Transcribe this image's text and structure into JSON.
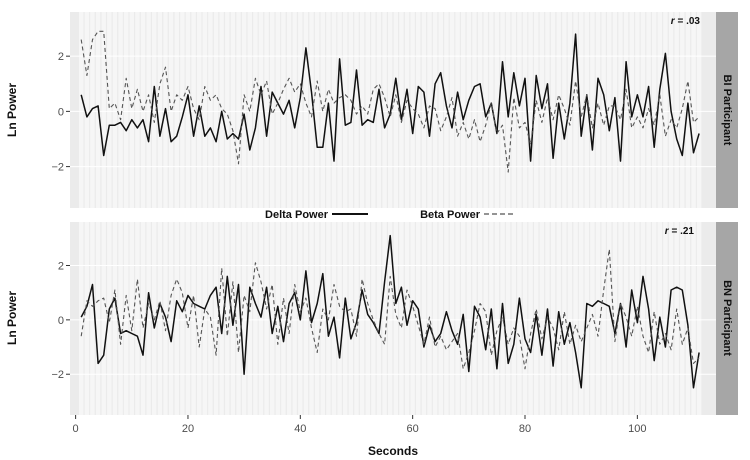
{
  "chart_data": {
    "type": "line",
    "xlabel": "Seconds",
    "ylabel": "Ln Power",
    "xlim": [
      -1,
      114
    ],
    "xticks": [
      0,
      20,
      40,
      60,
      80,
      100
    ],
    "legend": {
      "placement": "between panels",
      "entries": [
        {
          "label": "Delta Power",
          "style": "solid"
        },
        {
          "label": "Beta Power",
          "style": "dashed"
        }
      ]
    },
    "colors": {
      "delta": "#111111",
      "beta": "#555555",
      "panel_bg": "#ebebeb",
      "stripe": "#f6f6f6",
      "strip_bg": "#a6a6a6"
    },
    "panels": [
      {
        "strip_label": "BI Participant",
        "r_prefix": "r",
        "r_value": " = .03",
        "ylim": [
          -3.5,
          3.6
        ],
        "yticks": [
          -2,
          0,
          2
        ],
        "tick_labels": [
          "−2",
          "0",
          "2"
        ],
        "series": [
          {
            "name": "Delta Power",
            "style": "solid",
            "x": [
              1,
              2,
              3,
              4,
              5,
              6,
              7,
              8,
              9,
              10,
              11,
              12,
              13,
              14,
              15,
              16,
              17,
              18,
              19,
              20,
              21,
              22,
              23,
              24,
              25,
              26,
              27,
              28,
              29,
              30,
              31,
              32,
              33,
              34,
              35,
              36,
              37,
              38,
              39,
              40,
              41,
              42,
              43,
              44,
              45,
              46,
              47,
              48,
              49,
              50,
              51,
              52,
              53,
              54,
              55,
              56,
              57,
              58,
              59,
              60,
              61,
              62,
              63,
              64,
              65,
              66,
              67,
              68,
              69,
              70,
              71,
              72,
              73,
              74,
              75,
              76,
              77,
              78,
              79,
              80,
              81,
              82,
              83,
              84,
              85,
              86,
              87,
              88,
              89,
              90,
              91,
              92,
              93,
              94,
              95,
              96,
              97,
              98,
              99,
              100,
              101,
              102,
              103,
              104,
              105,
              106,
              107,
              108,
              109,
              110,
              111
            ],
            "y": [
              0.6,
              -0.2,
              0.1,
              0.2,
              -1.6,
              -0.5,
              -0.5,
              -0.4,
              -0.7,
              -0.3,
              -0.6,
              -0.3,
              -1.1,
              0.9,
              -0.9,
              0.1,
              -1.1,
              -0.9,
              -0.2,
              0.6,
              -0.9,
              0.2,
              -0.9,
              -0.6,
              -1.1,
              0.0,
              -1.0,
              -0.8,
              -1.0,
              -0.1,
              -1.4,
              -0.6,
              0.9,
              -0.9,
              0.7,
              0.3,
              -0.1,
              0.4,
              -0.6,
              0.5,
              2.3,
              0.7,
              -1.3,
              -1.3,
              0.3,
              -1.8,
              1.9,
              -0.5,
              -0.4,
              1.5,
              -0.5,
              -0.3,
              -0.4,
              0.8,
              -0.6,
              -0.1,
              1.2,
              -0.3,
              0.8,
              -0.8,
              0.9,
              0.7,
              -0.9,
              1.0,
              1.4,
              0.2,
              -0.6,
              0.7,
              -0.3,
              0.4,
              0.9,
              1.0,
              -0.2,
              0.3,
              -0.8,
              1.8,
              -0.2,
              1.4,
              0.2,
              1.2,
              -1.8,
              1.3,
              0.1,
              1.0,
              -1.7,
              0.3,
              -1.0,
              0.3,
              2.8,
              -0.9,
              0.6,
              -1.4,
              1.2,
              0.6,
              -0.7,
              0.5,
              -1.8,
              1.8,
              -0.2,
              0.6,
              -0.2,
              0.9,
              -1.3,
              0.8,
              2.1,
              0.0,
              -1.0,
              -1.6,
              0.3,
              -1.5,
              -0.8
            ]
          },
          {
            "name": "Beta Power",
            "style": "dashed",
            "x": [
              1,
              2,
              3,
              4,
              5,
              6,
              7,
              8,
              9,
              10,
              11,
              12,
              13,
              14,
              15,
              16,
              17,
              18,
              19,
              20,
              21,
              22,
              23,
              24,
              25,
              26,
              27,
              28,
              29,
              30,
              31,
              32,
              33,
              34,
              35,
              36,
              37,
              38,
              39,
              40,
              41,
              42,
              43,
              44,
              45,
              46,
              47,
              48,
              49,
              50,
              51,
              52,
              53,
              54,
              55,
              56,
              57,
              58,
              59,
              60,
              61,
              62,
              63,
              64,
              65,
              66,
              67,
              68,
              69,
              70,
              71,
              72,
              73,
              74,
              75,
              76,
              77,
              78,
              79,
              80,
              81,
              82,
              83,
              84,
              85,
              86,
              87,
              88,
              89,
              90,
              91,
              92,
              93,
              94,
              95,
              96,
              97,
              98,
              99,
              100,
              101,
              102,
              103,
              104,
              105,
              106,
              107,
              108,
              109,
              110,
              111
            ],
            "y": [
              2.6,
              1.3,
              2.6,
              2.9,
              2.9,
              0.1,
              0.3,
              -0.3,
              1.2,
              0.1,
              0.8,
              0.0,
              0.6,
              -0.4,
              1.0,
              1.6,
              0.0,
              0.6,
              0.4,
              0.9,
              0.1,
              -0.3,
              0.9,
              0.4,
              0.6,
              0.1,
              -0.1,
              -0.7,
              -1.9,
              0.6,
              0.0,
              1.2,
              0.6,
              1.1,
              -0.1,
              0.3,
              0.8,
              1.2,
              0.7,
              1.0,
              0.3,
              -0.2,
              1.1,
              0.0,
              0.8,
              0.3,
              0.5,
              0.6,
              0.4,
              -0.1,
              0.2,
              -0.1,
              0.8,
              1.0,
              0.5,
              -0.2,
              0.6,
              -0.4,
              0.4,
              0.1,
              -0.1,
              -0.6,
              0.2,
              0.1,
              -0.7,
              -0.2,
              0.5,
              -0.9,
              -0.4,
              -1.0,
              -0.3,
              -1.1,
              -0.5,
              0.3,
              -0.8,
              -0.5,
              -2.2,
              0.5,
              -0.6,
              -0.4,
              -1.2,
              0.4,
              -0.4,
              0.5,
              -0.3,
              0.6,
              0.1,
              -0.5,
              1.1,
              -0.2,
              0.6,
              -0.6,
              0.3,
              -0.5,
              0.2,
              0.2,
              -0.3,
              0.8,
              -0.6,
              -0.2,
              -0.6,
              0.1,
              -0.5,
              0.6,
              -0.9,
              -0.3,
              -0.6,
              0.1,
              1.1,
              -0.4,
              -0.2
            ]
          }
        ]
      },
      {
        "strip_label": "BN Participant",
        "r_prefix": "r",
        "r_value": " = .21",
        "ylim": [
          -3.5,
          3.6
        ],
        "yticks": [
          -2,
          0,
          2
        ],
        "tick_labels": [
          "−2",
          "0",
          "2"
        ],
        "series": [
          {
            "name": "Delta Power",
            "style": "solid",
            "x": [
              1,
              2,
              3,
              4,
              5,
              6,
              7,
              8,
              9,
              10,
              11,
              12,
              13,
              14,
              15,
              16,
              17,
              18,
              19,
              20,
              21,
              22,
              23,
              24,
              25,
              26,
              27,
              28,
              29,
              30,
              31,
              32,
              33,
              34,
              35,
              36,
              37,
              38,
              39,
              40,
              41,
              42,
              43,
              44,
              45,
              46,
              47,
              48,
              49,
              50,
              51,
              52,
              53,
              54,
              55,
              56,
              57,
              58,
              59,
              60,
              61,
              62,
              63,
              64,
              65,
              66,
              67,
              68,
              69,
              70,
              71,
              72,
              73,
              74,
              75,
              76,
              77,
              78,
              79,
              80,
              81,
              82,
              83,
              84,
              85,
              86,
              87,
              88,
              89,
              90,
              91,
              92,
              93,
              94,
              95,
              96,
              97,
              98,
              99,
              100,
              101,
              102,
              103,
              104,
              105,
              106,
              107,
              108,
              109,
              110,
              111
            ],
            "y": [
              0.1,
              0.5,
              1.3,
              -1.6,
              -1.3,
              0.4,
              0.8,
              -0.5,
              -0.4,
              -0.5,
              -0.6,
              -1.3,
              1.0,
              -0.3,
              0.6,
              0.1,
              -0.8,
              0.7,
              0.3,
              0.9,
              0.6,
              0.5,
              0.4,
              0.9,
              1.2,
              -0.5,
              1.6,
              -0.2,
              1.3,
              -2.0,
              1.2,
              0.6,
              0.1,
              1.2,
              -0.5,
              0.5,
              -0.8,
              0.6,
              1.0,
              0.0,
              1.8,
              -0.1,
              0.6,
              1.7,
              -0.6,
              0.1,
              -1.4,
              0.8,
              -0.7,
              -0.1,
              1.1,
              0.2,
              -0.1,
              -0.5,
              1.4,
              3.1,
              0.6,
              1.2,
              -0.2,
              0.7,
              0.4,
              -1.0,
              -0.2,
              -0.8,
              -0.5,
              0.3,
              -0.4,
              -0.9,
              0.2,
              -1.9,
              0.5,
              0.1,
              -1.1,
              0.4,
              -1.8,
              0.6,
              -1.6,
              -0.9,
              0.8,
              -0.7,
              -1.2,
              0.2,
              -1.3,
              0.4,
              -1.7,
              0.3,
              -0.9,
              -0.1,
              -1.2,
              -2.5,
              0.6,
              0.5,
              0.7,
              0.6,
              0.5,
              -0.5,
              0.6,
              -1.0,
              1.1,
              -0.1,
              1.6,
              0.4,
              -1.5,
              0.1,
              -1.0,
              1.1,
              1.2,
              1.1,
              -0.2,
              -2.5,
              -1.2
            ]
          },
          {
            "name": "Beta Power",
            "style": "dashed",
            "x": [
              1,
              2,
              3,
              4,
              5,
              6,
              7,
              8,
              9,
              10,
              11,
              12,
              13,
              14,
              15,
              16,
              17,
              18,
              19,
              20,
              21,
              22,
              23,
              24,
              25,
              26,
              27,
              28,
              29,
              30,
              31,
              32,
              33,
              34,
              35,
              36,
              37,
              38,
              39,
              40,
              41,
              42,
              43,
              44,
              45,
              46,
              47,
              48,
              49,
              50,
              51,
              52,
              53,
              54,
              55,
              56,
              57,
              58,
              59,
              60,
              61,
              62,
              63,
              64,
              65,
              66,
              67,
              68,
              69,
              70,
              71,
              72,
              73,
              74,
              75,
              76,
              77,
              78,
              79,
              80,
              81,
              82,
              83,
              84,
              85,
              86,
              87,
              88,
              89,
              90,
              91,
              92,
              93,
              94,
              95,
              96,
              97,
              98,
              99,
              100,
              101,
              102,
              103,
              104,
              105,
              106,
              107,
              108,
              109,
              110,
              111
            ],
            "y": [
              -0.6,
              0.7,
              0.5,
              0.7,
              0.8,
              -0.1,
              1.1,
              -0.9,
              0.9,
              -0.4,
              1.5,
              -0.3,
              0.6,
              0.0,
              0.7,
              -0.4,
              0.9,
              1.5,
              1.0,
              -0.3,
              0.9,
              -1.0,
              0.4,
              0.1,
              -1.3,
              1.9,
              -0.6,
              1.4,
              -1.2,
              0.9,
              0.3,
              2.1,
              1.4,
              0.4,
              1.3,
              -0.9,
              0.8,
              -0.5,
              1.3,
              0.3,
              0.8,
              -0.3,
              -1.2,
              0.4,
              0.0,
              1.3,
              0.5,
              0.3,
              0.4,
              -0.6,
              1.5,
              0.6,
              0.0,
              -0.5,
              -0.9,
              1.6,
              0.2,
              -0.3,
              1.1,
              0.5,
              -0.2,
              -0.9,
              0.1,
              -1.0,
              -0.6,
              -1.1,
              -0.8,
              -0.5,
              -1.8,
              -1.2,
              -0.4,
              0.6,
              0.3,
              -1.3,
              -0.4,
              0.1,
              -0.9,
              -0.3,
              -0.6,
              -1.8,
              -0.5,
              0.4,
              -0.7,
              0.1,
              -0.3,
              -1.1,
              0.3,
              -0.9,
              -0.2,
              -0.8,
              -0.3,
              0.2,
              -0.6,
              1.1,
              2.6,
              -0.8,
              0.6,
              0.1,
              -0.6,
              0.5,
              -0.6,
              -1.2,
              0.3,
              -0.9,
              -0.5,
              -1.1,
              0.4,
              -0.9,
              -0.3,
              -1.6,
              -1.4
            ]
          }
        ]
      }
    ]
  }
}
